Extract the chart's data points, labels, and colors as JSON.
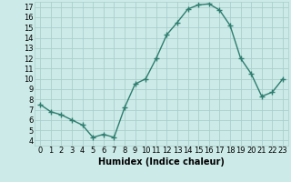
{
  "x": [
    0,
    1,
    2,
    3,
    4,
    5,
    6,
    7,
    8,
    9,
    10,
    11,
    12,
    13,
    14,
    15,
    16,
    17,
    18,
    19,
    20,
    21,
    22,
    23
  ],
  "y": [
    7.5,
    6.8,
    6.5,
    6.0,
    5.5,
    4.3,
    4.6,
    4.3,
    7.2,
    9.5,
    10.0,
    12.0,
    14.3,
    15.5,
    16.8,
    17.2,
    17.3,
    16.7,
    15.2,
    12.0,
    10.5,
    8.3,
    8.7,
    10.0
  ],
  "line_color": "#2e7d6e",
  "marker": "+",
  "bg_color": "#cceae8",
  "grid_color": "#aacfcc",
  "xlabel": "Humidex (Indice chaleur)",
  "xlim": [
    -0.5,
    23.5
  ],
  "ylim": [
    3.5,
    17.5
  ],
  "yticks": [
    4,
    5,
    6,
    7,
    8,
    9,
    10,
    11,
    12,
    13,
    14,
    15,
    16,
    17
  ],
  "xtick_labels": [
    "0",
    "1",
    "2",
    "3",
    "4",
    "5",
    "6",
    "7",
    "8",
    "9",
    "10",
    "11",
    "12",
    "13",
    "14",
    "15",
    "16",
    "17",
    "18",
    "19",
    "20",
    "21",
    "22",
    "23"
  ],
  "tick_fontsize": 6,
  "label_fontsize": 7
}
